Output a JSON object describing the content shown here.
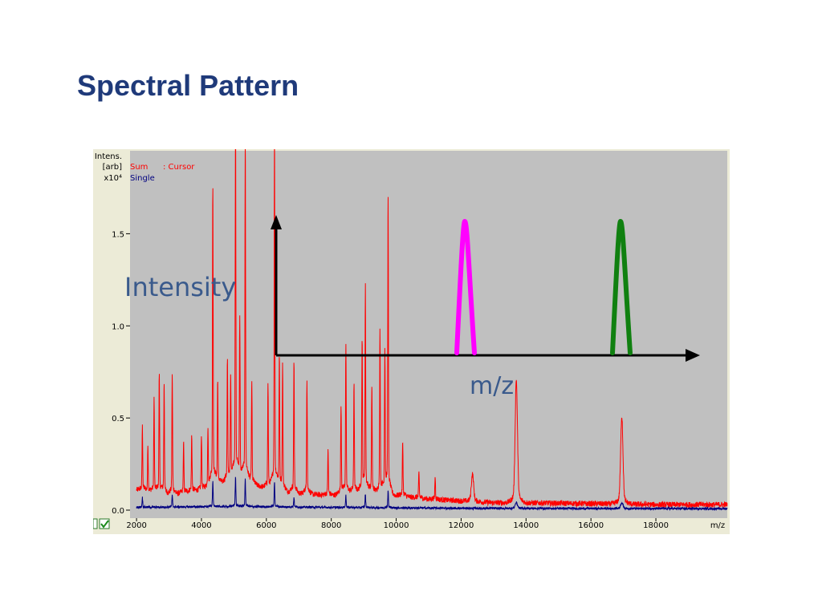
{
  "slide": {
    "title": "Spectral Pattern"
  },
  "chart_data": {
    "type": "line",
    "y_axis": {
      "caption_lines": [
        "Intens.",
        "[arb]",
        "x10⁴"
      ],
      "range": [
        0,
        1.85
      ],
      "ticks": [
        0.0,
        0.5,
        1.0,
        1.5
      ],
      "tick_labels": [
        "0.0",
        "0.5",
        "1.0",
        "1.5"
      ]
    },
    "x_axis": {
      "label": "m/z",
      "range": [
        1800,
        20200
      ],
      "ticks": [
        2000,
        4000,
        6000,
        8000,
        10000,
        12000,
        14000,
        16000,
        18000
      ],
      "tick_labels": [
        "2000",
        "4000",
        "6000",
        "8000",
        "10000",
        "12000",
        "14000",
        "16000",
        "18000"
      ]
    },
    "legend": {
      "placement": "top-left",
      "sum_label": "Sum",
      "cursor_label": ": Cursor",
      "single_label": "Single"
    },
    "colors": {
      "sum": "#ff0000",
      "single": "#000080",
      "plot_bg": "#c0c0c0",
      "panel_bg": "#ecebd7",
      "schematic_axis": "#000000",
      "peak_a": "#ff00ff",
      "peak_b": "#108010",
      "schematic_text": "#3a5a8c"
    },
    "series": [
      {
        "name": "Sum",
        "baseline": [
          [
            2000,
            0.11
          ],
          [
            3000,
            0.08
          ],
          [
            4000,
            0.11
          ],
          [
            5000,
            0.17
          ],
          [
            6000,
            0.12
          ],
          [
            7000,
            0.09
          ],
          [
            8000,
            0.08
          ],
          [
            9000,
            0.1
          ],
          [
            10000,
            0.08
          ],
          [
            11000,
            0.06
          ],
          [
            12000,
            0.05
          ],
          [
            13000,
            0.04
          ],
          [
            14000,
            0.04
          ],
          [
            16000,
            0.035
          ],
          [
            18000,
            0.03
          ],
          [
            20000,
            0.03
          ]
        ],
        "peaks": [
          {
            "mz": 2180,
            "intensity": 0.33
          },
          {
            "mz": 2350,
            "intensity": 0.24
          },
          {
            "mz": 2540,
            "intensity": 0.48
          },
          {
            "mz": 2700,
            "intensity": 0.61
          },
          {
            "mz": 2850,
            "intensity": 0.58
          },
          {
            "mz": 3100,
            "intensity": 0.62
          },
          {
            "mz": 3450,
            "intensity": 0.26
          },
          {
            "mz": 3700,
            "intensity": 0.29
          },
          {
            "mz": 4000,
            "intensity": 0.28
          },
          {
            "mz": 4200,
            "intensity": 0.31
          },
          {
            "mz": 4350,
            "intensity": 1.55
          },
          {
            "mz": 4500,
            "intensity": 0.54
          },
          {
            "mz": 4800,
            "intensity": 0.62
          },
          {
            "mz": 4900,
            "intensity": 0.52
          },
          {
            "mz": 5050,
            "intensity": 1.82
          },
          {
            "mz": 5180,
            "intensity": 0.83
          },
          {
            "mz": 5350,
            "intensity": 1.78
          },
          {
            "mz": 5550,
            "intensity": 0.52
          },
          {
            "mz": 6050,
            "intensity": 0.54
          },
          {
            "mz": 6250,
            "intensity": 1.84
          },
          {
            "mz": 6400,
            "intensity": 0.68
          },
          {
            "mz": 6500,
            "intensity": 0.64
          },
          {
            "mz": 6850,
            "intensity": 0.68
          },
          {
            "mz": 7250,
            "intensity": 0.59
          },
          {
            "mz": 7900,
            "intensity": 0.23
          },
          {
            "mz": 8300,
            "intensity": 0.46
          },
          {
            "mz": 8450,
            "intensity": 0.77
          },
          {
            "mz": 8700,
            "intensity": 0.57
          },
          {
            "mz": 8950,
            "intensity": 0.78
          },
          {
            "mz": 9050,
            "intensity": 1.04
          },
          {
            "mz": 9250,
            "intensity": 0.56
          },
          {
            "mz": 9500,
            "intensity": 0.85
          },
          {
            "mz": 9650,
            "intensity": 0.72
          },
          {
            "mz": 9750,
            "intensity": 1.53
          },
          {
            "mz": 10200,
            "intensity": 0.28
          },
          {
            "mz": 10700,
            "intensity": 0.13
          },
          {
            "mz": 11200,
            "intensity": 0.12
          },
          {
            "mz": 12350,
            "intensity": 0.14
          },
          {
            "mz": 13700,
            "intensity": 0.63
          },
          {
            "mz": 16950,
            "intensity": 0.45
          }
        ]
      },
      {
        "name": "Single",
        "baseline": [
          [
            2000,
            0.015
          ],
          [
            5000,
            0.02
          ],
          [
            8000,
            0.015
          ],
          [
            12000,
            0.01
          ],
          [
            20000,
            0.008
          ]
        ],
        "peaks": [
          {
            "mz": 2180,
            "intensity": 0.05
          },
          {
            "mz": 3100,
            "intensity": 0.06
          },
          {
            "mz": 4350,
            "intensity": 0.13
          },
          {
            "mz": 5050,
            "intensity": 0.15
          },
          {
            "mz": 5350,
            "intensity": 0.14
          },
          {
            "mz": 6250,
            "intensity": 0.13
          },
          {
            "mz": 6850,
            "intensity": 0.05
          },
          {
            "mz": 8450,
            "intensity": 0.06
          },
          {
            "mz": 9050,
            "intensity": 0.07
          },
          {
            "mz": 9750,
            "intensity": 0.09
          },
          {
            "mz": 13700,
            "intensity": 0.03
          },
          {
            "mz": 16950,
            "intensity": 0.03
          }
        ]
      }
    ],
    "annotations": {
      "intensity_label": "Intensity",
      "mz_label": "m/z"
    }
  },
  "status": {
    "checkbox_1": true,
    "checkbox_2": true
  }
}
